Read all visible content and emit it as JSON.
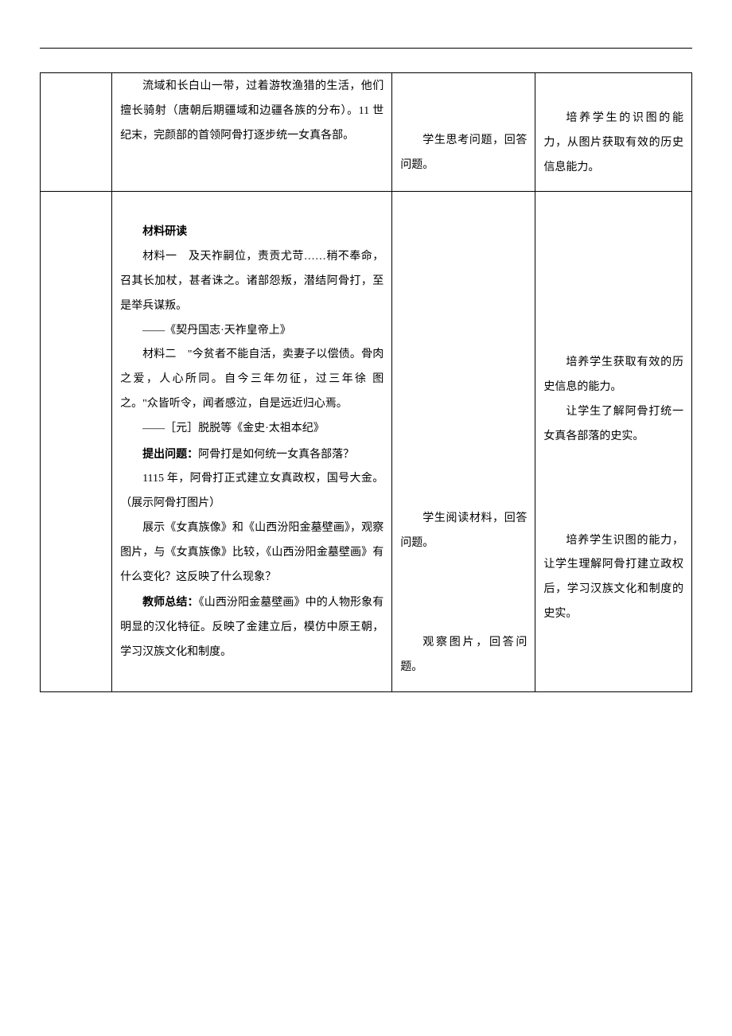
{
  "row1": {
    "col2": {
      "p1": "流域和长白山一带，过着游牧渔猎的生活，他们擅长骑射（唐朝后期疆域和边疆各族的分布）。11 世纪末，完颜部的首领阿骨打逐步统一女真各部。"
    },
    "col3": {
      "p1": "学生思考问题，回答问题。"
    },
    "col4": {
      "p1": "培养学生的识图的能力，从图片获取有效的历史信息能力。"
    }
  },
  "row2": {
    "col2": {
      "heading": "材料研读",
      "m1_p1": "材料一　及天祚嗣位，责贡尤苛……稍不奉命，召其长加杖，甚者诛之。诸部怨叛，潜结阿骨打，至是举兵谋叛。",
      "m1_src": "——《契丹国志·天祚皇帝上》",
      "m2_p1": "材料二　\"今贫者不能自活，卖妻子以偿债。骨肉之爱，人心所同。自今三年勿征，过三年徐 图之。\"众皆听令，闻者感泣，自是远近归心焉。",
      "m2_src": "——［元］脱脱等《金史·太祖本纪》",
      "q_label": "提出问题：",
      "q_text": "阿骨打是如何统一女真各部落？",
      "p_1115": "1115 年，阿骨打正式建立女真政权，国号大金。（展示阿骨打图片）",
      "p_exhibit": "展示《女真族像》和《山西汾阳金墓壁画》，观察图片，与《女真族像》比较，《山西汾阳金墓壁画》有什么变化？这反映了什么现象？",
      "sum_label": "教师总结：",
      "sum_text": "《山西汾阳金墓壁画》中的人物形象有明显的汉化特征。反映了金建立后，模仿中原王朝，学习汉族文化和制度。"
    },
    "col3": {
      "p1": "学生阅读材料，回答问题。",
      "p2": "观察图片，回答问题。"
    },
    "col4": {
      "p1": "培养学生获取有效的历史信息的能力。",
      "p2": "让学生了解阿骨打统一女真各部落的史实。",
      "p3": "培养学生识图的能力，让学生理解阿骨打建立政权后，学习汉族文化和制度的史实。"
    }
  }
}
